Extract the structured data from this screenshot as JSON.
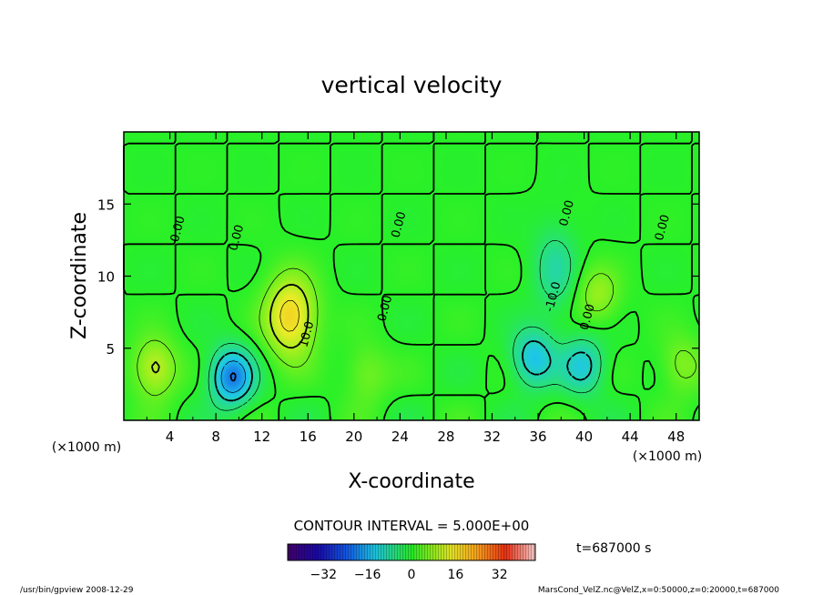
{
  "chart_data": {
    "type": "heatmap",
    "title": "vertical velocity",
    "xlabel": "X-coordinate",
    "ylabel": "Z-coordinate",
    "x_unit_left": "(×1000 m)",
    "x_unit_right": "(×1000 m)",
    "xlim": [
      0,
      50
    ],
    "ylim": [
      0,
      20
    ],
    "x_ticks": [
      4,
      8,
      12,
      16,
      20,
      24,
      28,
      32,
      36,
      40,
      44,
      48
    ],
    "y_ticks": [
      5,
      10,
      15
    ],
    "contour_interval_text": "CONTOUR INTERVAL = 5.000E+00",
    "time_text": "t=687000 s",
    "colorbar": {
      "min": -45,
      "max": 45,
      "ticks": [
        -32,
        -16,
        0,
        16,
        32
      ]
    },
    "contour_labels": [
      {
        "text": "0.00",
        "x": 5.0,
        "y": 13.2
      },
      {
        "text": "0.00",
        "x": 10.1,
        "y": 12.6
      },
      {
        "text": "0.00",
        "x": 24.2,
        "y": 13.5
      },
      {
        "text": "0.00",
        "x": 23.0,
        "y": 7.7
      },
      {
        "text": "0.00",
        "x": 38.8,
        "y": 14.3
      },
      {
        "text": "0.00",
        "x": 47.1,
        "y": 13.3
      },
      {
        "text": "0.00",
        "x": 40.6,
        "y": 7.1
      },
      {
        "text": "10.0",
        "x": 16.2,
        "y": 5.9
      },
      {
        "text": "-10.0",
        "x": 37.6,
        "y": 8.5
      }
    ],
    "features": [
      {
        "kind": "max",
        "x": 2.7,
        "y": 3.6,
        "value": 12
      },
      {
        "kind": "min",
        "x": 9.4,
        "y": 3.0,
        "value": -20
      },
      {
        "kind": "max",
        "x": 14.5,
        "y": 7.2,
        "value": 18
      },
      {
        "kind": "max",
        "x": 21.1,
        "y": 3.2,
        "value": 6
      },
      {
        "kind": "min",
        "x": 35.6,
        "y": 4.3,
        "value": -14
      },
      {
        "kind": "min",
        "x": 39.9,
        "y": 3.8,
        "value": -12
      },
      {
        "kind": "min",
        "x": 37.5,
        "y": 10.5,
        "value": -8
      },
      {
        "kind": "max",
        "x": 41.2,
        "y": 8.7,
        "value": 8
      },
      {
        "kind": "max",
        "x": 48.5,
        "y": 3.8,
        "value": 7
      }
    ]
  },
  "footer": {
    "left": "/usr/bin/gpview   2008-12-29",
    "right": "MarsCond_VelZ.nc@VelZ,x=0:50000,z=0:20000,t=687000"
  }
}
